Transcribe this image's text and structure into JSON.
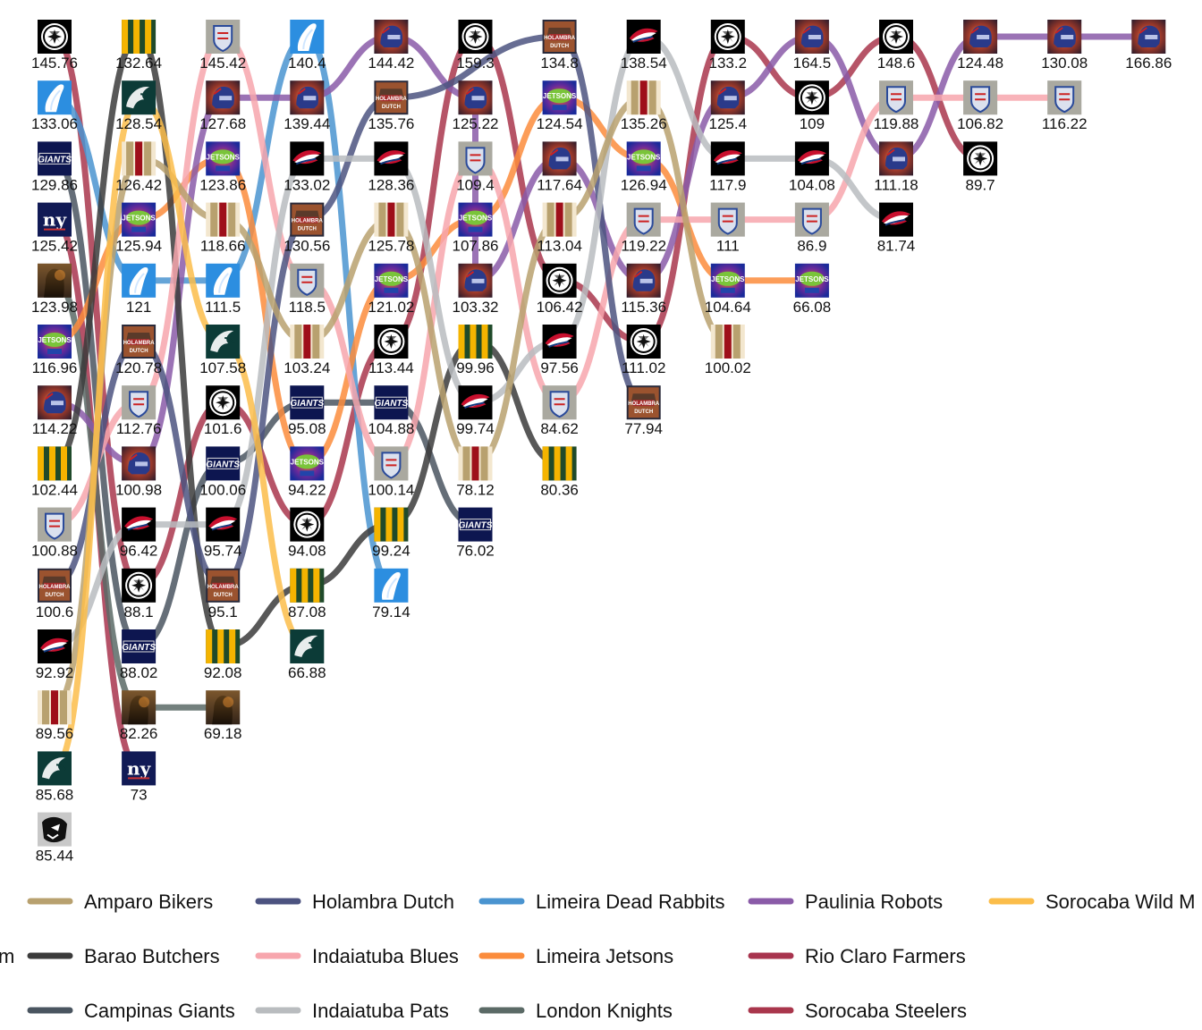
{
  "chart_data": {
    "type": "bump",
    "legend_title_fragment": "m",
    "legend": [
      "Amparo Bikers",
      "Barao Butchers",
      "Campinas Giants",
      "Holambra Dutch",
      "Indaiatuba Blues",
      "Indaiatuba Pats",
      "Limeira Dead Rabbits",
      "Limeira Jetsons",
      "London Knights",
      "Paulinia Robots",
      "Rio Claro Farmers",
      "Sorocaba Steelers",
      "Sorocaba Wild M"
    ],
    "colors": {
      "Amparo Bikers": "#b8a16f",
      "Barao Butchers": "#3b3b3b",
      "Campinas Giants": "#4a5560",
      "Holambra Dutch": "#4c5380",
      "Indaiatuba Blues": "#f7a6ad",
      "Indaiatuba Pats": "#b9bcbf",
      "Limeira Dead Rabbits": "#4a94d0",
      "Limeira Jetsons": "#fb8c3c",
      "London Knights": "#5b6a66",
      "Paulinia Robots": "#8a5ba8",
      "Rio Claro Farmers": "#a8344e",
      "Sorocaba Steelers": "#a9364c",
      "Sorocaba Wild M": "#fbbd4a"
    },
    "icons": {
      "Amparo Bikers": "amparo-stripes-icon",
      "Barao Butchers": "barao-stripes-icon",
      "Campinas Giants": "giants-wordmark-icon",
      "Holambra Dutch": "holambra-dutch-icon",
      "Indaiatuba Blues": "indaiatuba-blues-shield-icon",
      "Indaiatuba Pats": "patriot-head-icon",
      "Limeira Dead Rabbits": "rabbit-icon",
      "Limeira Jetsons": "jetsons-icon",
      "London Knights": "knight-icon",
      "Paulinia Robots": "robot-helmet-icon",
      "Rio Claro Farmers": "ny-monogram-icon",
      "Sorocaba Steelers": "steelers-star-icon",
      "Sorocaba Wild M": "eagle-icon",
      "Unlisted": "panther-icon"
    },
    "weeks": [
      [
        [
          "Sorocaba Steelers",
          "145.76"
        ],
        [
          "Limeira Dead Rabbits",
          "133.06"
        ],
        [
          "Campinas Giants",
          "129.86"
        ],
        [
          "Rio Claro Farmers",
          "125.42"
        ],
        [
          "London Knights",
          "123.98"
        ],
        [
          "Limeira Jetsons",
          "116.96"
        ],
        [
          "Paulinia Robots",
          "114.22"
        ],
        [
          "Barao Butchers",
          "102.44"
        ],
        [
          "Indaiatuba Blues",
          "100.88"
        ],
        [
          "Holambra Dutch",
          "100.6"
        ],
        [
          "Indaiatuba Pats",
          "92.92"
        ],
        [
          "Amparo Bikers",
          "89.56"
        ],
        [
          "Sorocaba Wild M",
          "85.68"
        ],
        [
          "Unlisted",
          "85.44"
        ]
      ],
      [
        [
          "Barao Butchers",
          "132.64"
        ],
        [
          "Sorocaba Wild M",
          "128.54"
        ],
        [
          "Amparo Bikers",
          "126.42"
        ],
        [
          "Limeira Jetsons",
          "125.94"
        ],
        [
          "Limeira Dead Rabbits",
          "121"
        ],
        [
          "Holambra Dutch",
          "120.78"
        ],
        [
          "Indaiatuba Blues",
          "112.76"
        ],
        [
          "Paulinia Robots",
          "100.98"
        ],
        [
          "Indaiatuba Pats",
          "96.42"
        ],
        [
          "Sorocaba Steelers",
          "88.1"
        ],
        [
          "Campinas Giants",
          "88.02"
        ],
        [
          "London Knights",
          "82.26"
        ],
        [
          "Rio Claro Farmers",
          "73"
        ]
      ],
      [
        [
          "Indaiatuba Blues",
          "145.42"
        ],
        [
          "Paulinia Robots",
          "127.68"
        ],
        [
          "Limeira Jetsons",
          "123.86"
        ],
        [
          "Amparo Bikers",
          "118.66"
        ],
        [
          "Limeira Dead Rabbits",
          "111.5"
        ],
        [
          "Sorocaba Wild M",
          "107.58"
        ],
        [
          "Sorocaba Steelers",
          "101.6"
        ],
        [
          "Campinas Giants",
          "100.06"
        ],
        [
          "Indaiatuba Pats",
          "95.74"
        ],
        [
          "Holambra Dutch",
          "95.1"
        ],
        [
          "Barao Butchers",
          "92.08"
        ],
        [
          "London Knights",
          "69.18"
        ]
      ],
      [
        [
          "Limeira Dead Rabbits",
          "140.4"
        ],
        [
          "Paulinia Robots",
          "139.44"
        ],
        [
          "Indaiatuba Pats",
          "133.02"
        ],
        [
          "Holambra Dutch",
          "130.56"
        ],
        [
          "Indaiatuba Blues",
          "118.5"
        ],
        [
          "Amparo Bikers",
          "103.24"
        ],
        [
          "Campinas Giants",
          "95.08"
        ],
        [
          "Limeira Jetsons",
          "94.22"
        ],
        [
          "Sorocaba Steelers",
          "94.08"
        ],
        [
          "Barao Butchers",
          "87.08"
        ],
        [
          "Sorocaba Wild M",
          "66.88"
        ]
      ],
      [
        [
          "Paulinia Robots",
          "144.42"
        ],
        [
          "Holambra Dutch",
          "135.76"
        ],
        [
          "Indaiatuba Pats",
          "128.36"
        ],
        [
          "Amparo Bikers",
          "125.78"
        ],
        [
          "Limeira Jetsons",
          "121.02"
        ],
        [
          "Sorocaba Steelers",
          "113.44"
        ],
        [
          "Campinas Giants",
          "104.88"
        ],
        [
          "Indaiatuba Blues",
          "100.14"
        ],
        [
          "Barao Butchers",
          "99.24"
        ],
        [
          "Limeira Dead Rabbits",
          "79.14"
        ]
      ],
      [
        [
          "Sorocaba Steelers",
          "159.3"
        ],
        [
          "Paulinia Robots",
          "125.22"
        ],
        [
          "Indaiatuba Blues",
          "109.4"
        ],
        [
          "Limeira Jetsons",
          "107.86"
        ],
        [
          "Paulinia Robots",
          "103.32"
        ],
        [
          "Barao Butchers",
          "99.96"
        ],
        [
          "Indaiatuba Pats",
          "99.74"
        ],
        [
          "Amparo Bikers",
          "78.12"
        ],
        [
          "Campinas Giants",
          "76.02"
        ]
      ],
      [
        [
          "Holambra Dutch",
          "134.8"
        ],
        [
          "Limeira Jetsons",
          "124.54"
        ],
        [
          "Paulinia Robots",
          "117.64"
        ],
        [
          "Amparo Bikers",
          "113.04"
        ],
        [
          "Sorocaba Steelers",
          "106.42"
        ],
        [
          "Indaiatuba Pats",
          "97.56"
        ],
        [
          "Indaiatuba Blues",
          "84.62"
        ],
        [
          "Barao Butchers",
          "80.36"
        ]
      ],
      [
        [
          "Indaiatuba Pats",
          "138.54"
        ],
        [
          "Amparo Bikers",
          "135.26"
        ],
        [
          "Limeira Jetsons",
          "126.94"
        ],
        [
          "Indaiatuba Blues",
          "119.22"
        ],
        [
          "Paulinia Robots",
          "115.36"
        ],
        [
          "Sorocaba Steelers",
          "111.02"
        ],
        [
          "Holambra Dutch",
          "77.94"
        ]
      ],
      [
        [
          "Sorocaba Steelers",
          "133.2"
        ],
        [
          "Paulinia Robots",
          "125.4"
        ],
        [
          "Indaiatuba Pats",
          "117.9"
        ],
        [
          "Indaiatuba Blues",
          "111"
        ],
        [
          "Limeira Jetsons",
          "104.64"
        ],
        [
          "Amparo Bikers",
          "100.02"
        ]
      ],
      [
        [
          "Paulinia Robots",
          "164.5"
        ],
        [
          "Sorocaba Steelers",
          "109"
        ],
        [
          "Indaiatuba Pats",
          "104.08"
        ],
        [
          "Indaiatuba Blues",
          "86.9"
        ],
        [
          "Limeira Jetsons",
          "66.08"
        ]
      ],
      [
        [
          "Sorocaba Steelers",
          "148.6"
        ],
        [
          "Indaiatuba Blues",
          "119.88"
        ],
        [
          "Paulinia Robots",
          "111.18"
        ],
        [
          "Indaiatuba Pats",
          "81.74"
        ]
      ],
      [
        [
          "Paulinia Robots",
          "124.48"
        ],
        [
          "Indaiatuba Blues",
          "106.82"
        ],
        [
          "Sorocaba Steelers",
          "89.7"
        ]
      ],
      [
        [
          "Paulinia Robots",
          "130.08"
        ],
        [
          "Indaiatuba Blues",
          "116.22"
        ]
      ],
      [
        [
          "Paulinia Robots",
          "166.86"
        ]
      ]
    ]
  }
}
